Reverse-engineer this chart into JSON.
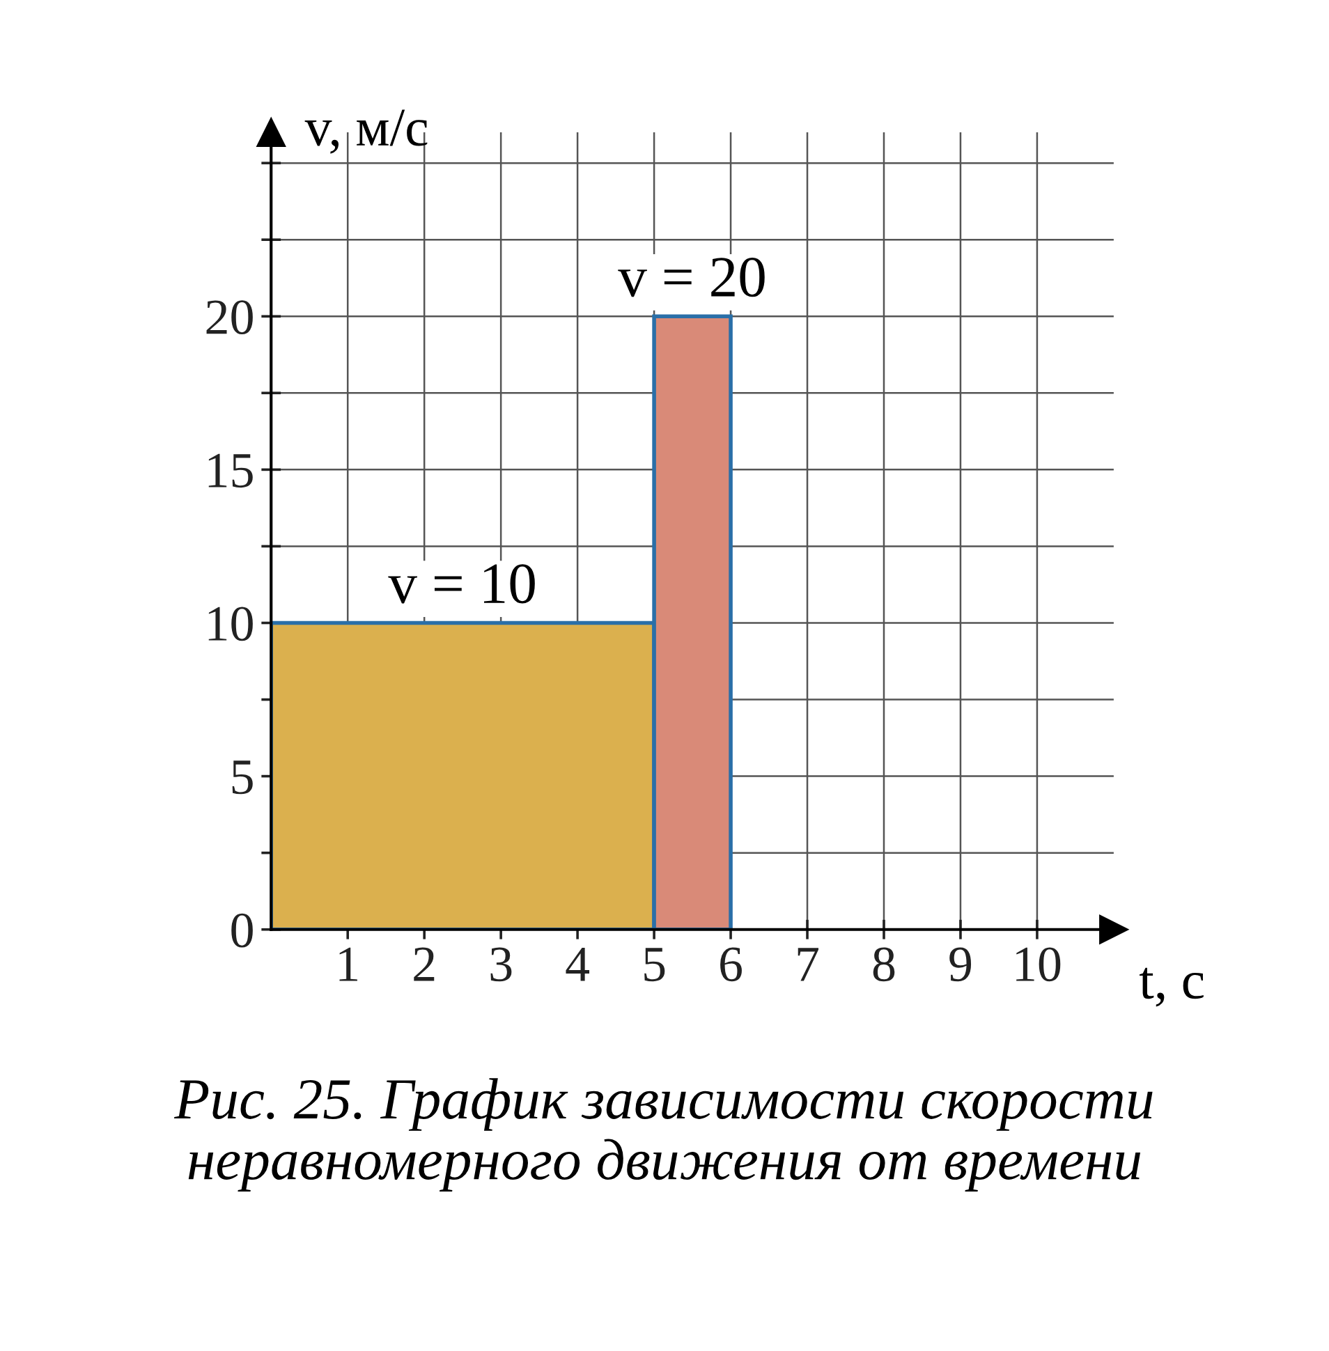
{
  "chart_data": {
    "type": "histogram",
    "xlabel": "t, с",
    "ylabel": "v, м/с",
    "bins": [
      0,
      5,
      6
    ],
    "values": [
      10,
      20
    ],
    "colors": [
      "#dbb04e",
      "#d98a78"
    ],
    "xlim": [
      0,
      11
    ],
    "ylim": [
      0,
      26
    ],
    "xticks": [
      1,
      2,
      3,
      4,
      5,
      6,
      7,
      8,
      9,
      10
    ],
    "yticks": [
      0,
      {
        "value": 2.5,
        "label": null
      },
      5,
      {
        "value": 7.5,
        "label": null
      },
      10,
      {
        "value": 12.5,
        "label": null
      },
      15,
      {
        "value": 17.5,
        "label": null
      },
      20,
      {
        "value": 22.5,
        "label": null
      },
      {
        "value": 25,
        "label": null
      }
    ],
    "grid": true,
    "annotations": [
      {
        "text": "v = 10",
        "x": 2.5,
        "y": 10
      },
      {
        "text": "v = 20",
        "x": 5.5,
        "y": 20
      },
      "Рис. 25. График зависимости скорости неравномерного движения от времени"
    ]
  }
}
